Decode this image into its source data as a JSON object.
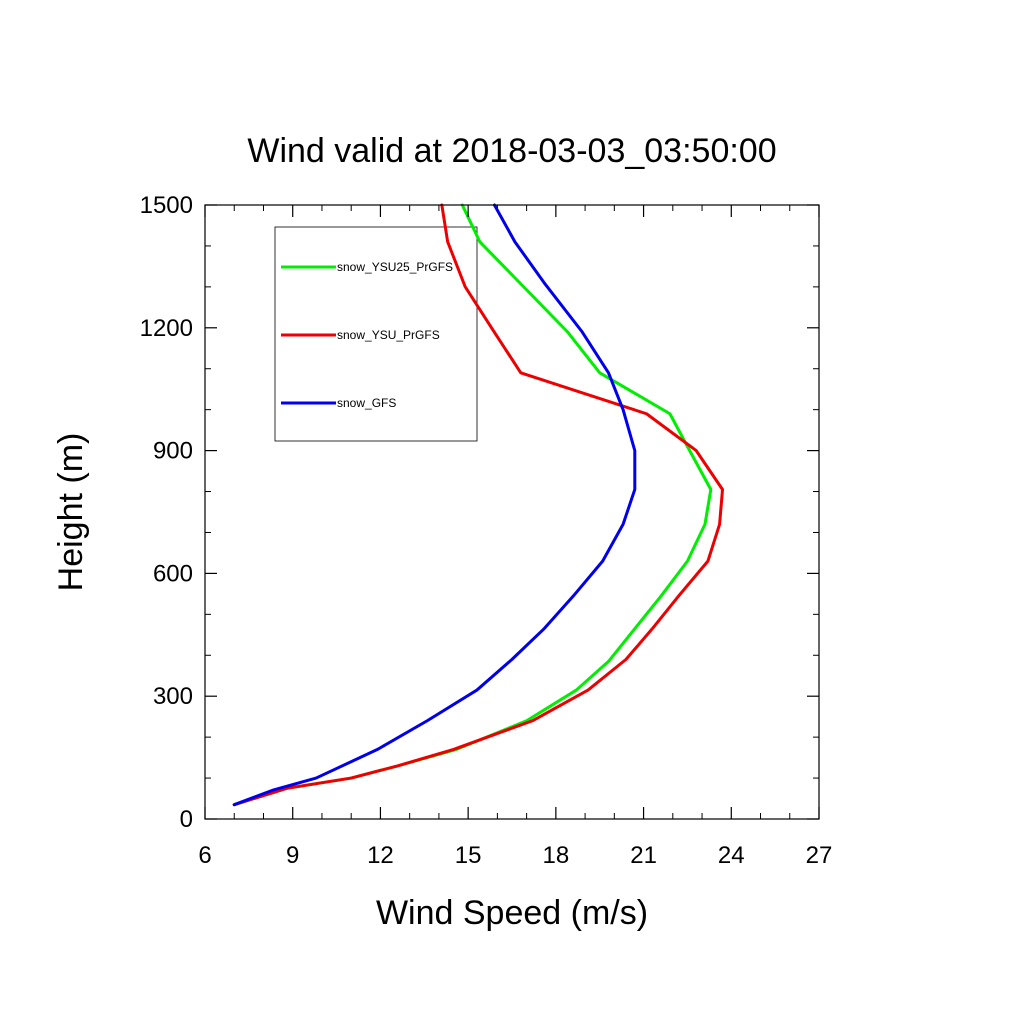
{
  "chart_data": {
    "type": "line",
    "title": "Wind valid at 2018-03-03_03:50:00",
    "xlabel": "Wind Speed (m/s)",
    "ylabel": "Height (m)",
    "xlim": [
      6,
      27
    ],
    "ylim": [
      0,
      1500
    ],
    "x_ticks": [
      "6",
      "9",
      "12",
      "15",
      "18",
      "21",
      "24",
      "27"
    ],
    "y_ticks": [
      "0",
      "300",
      "600",
      "900",
      "1200",
      "1500"
    ],
    "grid": false,
    "legend_position": "top-left",
    "series": [
      {
        "name": "snow_YSU25_PrGFS",
        "color": "#00ee00",
        "points": [
          [
            7.0,
            35
          ],
          [
            8.8,
            75
          ],
          [
            11.0,
            100
          ],
          [
            12.6,
            130
          ],
          [
            14.6,
            170
          ],
          [
            17.0,
            240
          ],
          [
            18.7,
            315
          ],
          [
            19.8,
            385
          ],
          [
            20.7,
            465
          ],
          [
            21.6,
            545
          ],
          [
            22.5,
            630
          ],
          [
            23.1,
            720
          ],
          [
            23.3,
            805
          ],
          [
            22.5,
            910
          ],
          [
            21.9,
            990
          ],
          [
            19.5,
            1090
          ],
          [
            18.4,
            1190
          ],
          [
            16.9,
            1300
          ],
          [
            15.4,
            1410
          ],
          [
            14.8,
            1500
          ]
        ]
      },
      {
        "name": "snow_YSU_PrGFS",
        "color": "#ee0000",
        "points": [
          [
            7.0,
            35
          ],
          [
            8.8,
            75
          ],
          [
            11.0,
            100
          ],
          [
            12.6,
            130
          ],
          [
            14.5,
            170
          ],
          [
            17.2,
            240
          ],
          [
            19.1,
            315
          ],
          [
            20.4,
            390
          ],
          [
            21.3,
            465
          ],
          [
            22.2,
            545
          ],
          [
            23.2,
            630
          ],
          [
            23.6,
            720
          ],
          [
            23.7,
            805
          ],
          [
            22.8,
            900
          ],
          [
            21.1,
            990
          ],
          [
            16.8,
            1090
          ],
          [
            15.8,
            1200
          ],
          [
            14.9,
            1300
          ],
          [
            14.3,
            1410
          ],
          [
            14.1,
            1500
          ]
        ]
      },
      {
        "name": "snow_GFS",
        "color": "#0000ee",
        "points": [
          [
            7.0,
            35
          ],
          [
            8.3,
            70
          ],
          [
            9.8,
            100
          ],
          [
            11.9,
            170
          ],
          [
            13.6,
            240
          ],
          [
            15.3,
            315
          ],
          [
            16.5,
            390
          ],
          [
            17.6,
            465
          ],
          [
            18.6,
            545
          ],
          [
            19.6,
            630
          ],
          [
            20.3,
            720
          ],
          [
            20.7,
            805
          ],
          [
            20.7,
            900
          ],
          [
            20.3,
            1000
          ],
          [
            19.8,
            1090
          ],
          [
            18.9,
            1190
          ],
          [
            17.6,
            1310
          ],
          [
            16.6,
            1410
          ],
          [
            15.9,
            1500
          ]
        ]
      }
    ]
  }
}
